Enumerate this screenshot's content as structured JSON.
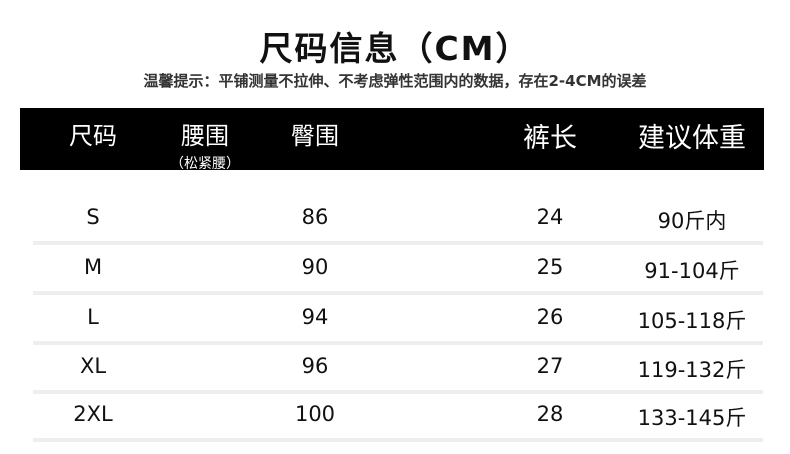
{
  "title": "尺码信息（CM）",
  "note": "温馨提示：平铺测量不拉伸、不考虑弹性范围内的数据，存在2-4CM的误差",
  "headers": [
    {
      "label": "尺码",
      "sub": ""
    },
    {
      "label": "腰围",
      "sub": "（松紧腰）"
    },
    {
      "label": "臀围",
      "sub": ""
    },
    {
      "label": "",
      "sub": ""
    },
    {
      "label": "裤长",
      "sub": ""
    },
    {
      "label": "建议体重",
      "sub": ""
    }
  ],
  "rows": [
    [
      "S",
      "",
      "86",
      "",
      "24",
      "90斤内"
    ],
    [
      "M",
      "",
      "90",
      "",
      "25",
      "91-104斤"
    ],
    [
      "L",
      "",
      "94",
      "",
      "26",
      "105-118斤"
    ],
    [
      "XL",
      "",
      "96",
      "",
      "27",
      "119-132斤"
    ],
    [
      "2XL",
      "",
      "100",
      "",
      "28",
      "133-145斤"
    ]
  ]
}
